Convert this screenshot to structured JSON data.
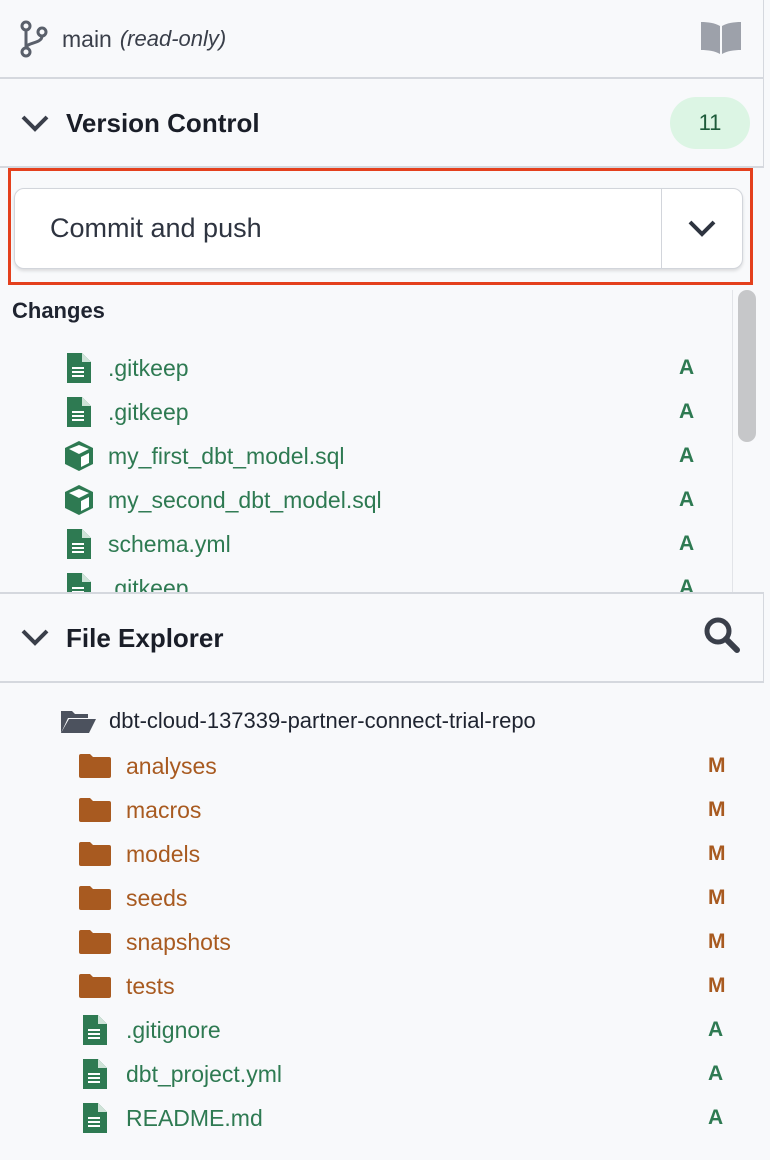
{
  "branch": {
    "name": "main",
    "mode": "(read-only)",
    "icon": "git-branch-icon",
    "docs_icon": "book-icon"
  },
  "version_control": {
    "title": "Version Control",
    "count": "11",
    "commit_button": "Commit and push",
    "changes_label": "Changes",
    "changes": [
      {
        "name": ".gitkeep",
        "icon": "file-icon",
        "status": "A"
      },
      {
        "name": ".gitkeep",
        "icon": "file-icon",
        "status": "A"
      },
      {
        "name": "my_first_dbt_model.sql",
        "icon": "model-cube-icon",
        "status": "A"
      },
      {
        "name": "my_second_dbt_model.sql",
        "icon": "model-cube-icon",
        "status": "A"
      },
      {
        "name": "schema.yml",
        "icon": "file-icon",
        "status": "A"
      },
      {
        "name": ".gitkeep",
        "icon": "file-icon",
        "status": "A"
      }
    ]
  },
  "file_explorer": {
    "title": "File Explorer",
    "root": "dbt-cloud-137339-partner-connect-trial-repo",
    "items": [
      {
        "name": "analyses",
        "type": "folder",
        "status": "M"
      },
      {
        "name": "macros",
        "type": "folder",
        "status": "M"
      },
      {
        "name": "models",
        "type": "folder",
        "status": "M"
      },
      {
        "name": "seeds",
        "type": "folder",
        "status": "M"
      },
      {
        "name": "snapshots",
        "type": "folder",
        "status": "M"
      },
      {
        "name": "tests",
        "type": "folder",
        "status": "M"
      },
      {
        "name": ".gitignore",
        "type": "file",
        "status": "A"
      },
      {
        "name": "dbt_project.yml",
        "type": "file",
        "status": "A"
      },
      {
        "name": "README.md",
        "type": "file",
        "status": "A"
      }
    ]
  },
  "colors": {
    "added": "#2e7a52",
    "modified": "#a85a20",
    "highlight": "#e4401d",
    "badge_bg": "#dcf5e4"
  }
}
